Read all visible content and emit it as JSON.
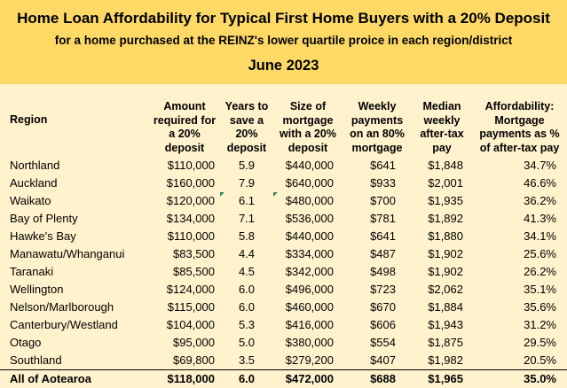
{
  "title": "Home Loan Affordability for Typical First Home Buyers with a 20% Deposit",
  "subtitle": "for a home purchased at the REINZ's lower quartile proice in each region/district",
  "date": "June 2023",
  "headers": {
    "region": "Region",
    "amount": [
      "Amount",
      "required for",
      "a 20%",
      "deposit"
    ],
    "years": [
      "Years to",
      "save a",
      "20%",
      "deposit"
    ],
    "mortgage": [
      "Size of",
      "mortgage",
      "with a 20%",
      "deposit"
    ],
    "weekly": [
      "Weekly",
      "payments",
      "on an 80%",
      "mortgage"
    ],
    "median": [
      "Median",
      "weekly",
      "after-tax",
      "pay"
    ],
    "affordability": [
      "Affordability:",
      "Mortgage",
      "payments as %",
      "of after-tax pay"
    ]
  },
  "rows": [
    {
      "region": "Northland",
      "amount": "$110,000",
      "years": "5.9",
      "mortgage": "$440,000",
      "weekly": "$641",
      "median": "$1,848",
      "affordability": "34.7%"
    },
    {
      "region": "Auckland",
      "amount": "$160,000",
      "years": "7.9",
      "mortgage": "$640,000",
      "weekly": "$933",
      "median": "$2,001",
      "affordability": "46.6%"
    },
    {
      "region": "Waikato",
      "amount": "$120,000",
      "years": "6.1",
      "mortgage": "$480,000",
      "weekly": "$700",
      "median": "$1,935",
      "affordability": "36.2%"
    },
    {
      "region": "Bay of Plenty",
      "amount": "$134,000",
      "years": "7.1",
      "mortgage": "$536,000",
      "weekly": "$781",
      "median": "$1,892",
      "affordability": "41.3%"
    },
    {
      "region": "Hawke's Bay",
      "amount": "$110,000",
      "years": "5.8",
      "mortgage": "$440,000",
      "weekly": "$641",
      "median": "$1,880",
      "affordability": "34.1%"
    },
    {
      "region": "Manawatu/Whanganui",
      "amount": "$83,500",
      "years": "4.4",
      "mortgage": "$334,000",
      "weekly": "$487",
      "median": "$1,902",
      "affordability": "25.6%"
    },
    {
      "region": "Taranaki",
      "amount": "$85,500",
      "years": "4.5",
      "mortgage": "$342,000",
      "weekly": "$498",
      "median": "$1,902",
      "affordability": "26.2%"
    },
    {
      "region": "Wellington",
      "amount": "$124,000",
      "years": "6.0",
      "mortgage": "$496,000",
      "weekly": "$723",
      "median": "$2,062",
      "affordability": "35.1%"
    },
    {
      "region": "Nelson/Marlborough",
      "amount": "$115,000",
      "years": "6.0",
      "mortgage": "$460,000",
      "weekly": "$670",
      "median": "$1,884",
      "affordability": "35.6%"
    },
    {
      "region": "Canterbury/Westland",
      "amount": "$104,000",
      "years": "5.3",
      "mortgage": "$416,000",
      "weekly": "$606",
      "median": "$1,943",
      "affordability": "31.2%"
    },
    {
      "region": "Otago",
      "amount": "$95,000",
      "years": "5.0",
      "mortgage": "$380,000",
      "weekly": "$554",
      "median": "$1,875",
      "affordability": "29.5%"
    },
    {
      "region": "Southland",
      "amount": "$69,800",
      "years": "3.5",
      "mortgage": "$279,200",
      "weekly": "$407",
      "median": "$1,982",
      "affordability": "20.5%"
    }
  ],
  "total": {
    "region": "All of Aotearoa",
    "amount": "$118,000",
    "years": "6.0",
    "mortgage": "$472,000",
    "weekly": "$688",
    "median": "$1,965",
    "affordability": "35.0%"
  },
  "colors": {
    "title_band": "#FFD966",
    "body": "#FFF2CC",
    "comment_flag": "#2E8B57"
  }
}
